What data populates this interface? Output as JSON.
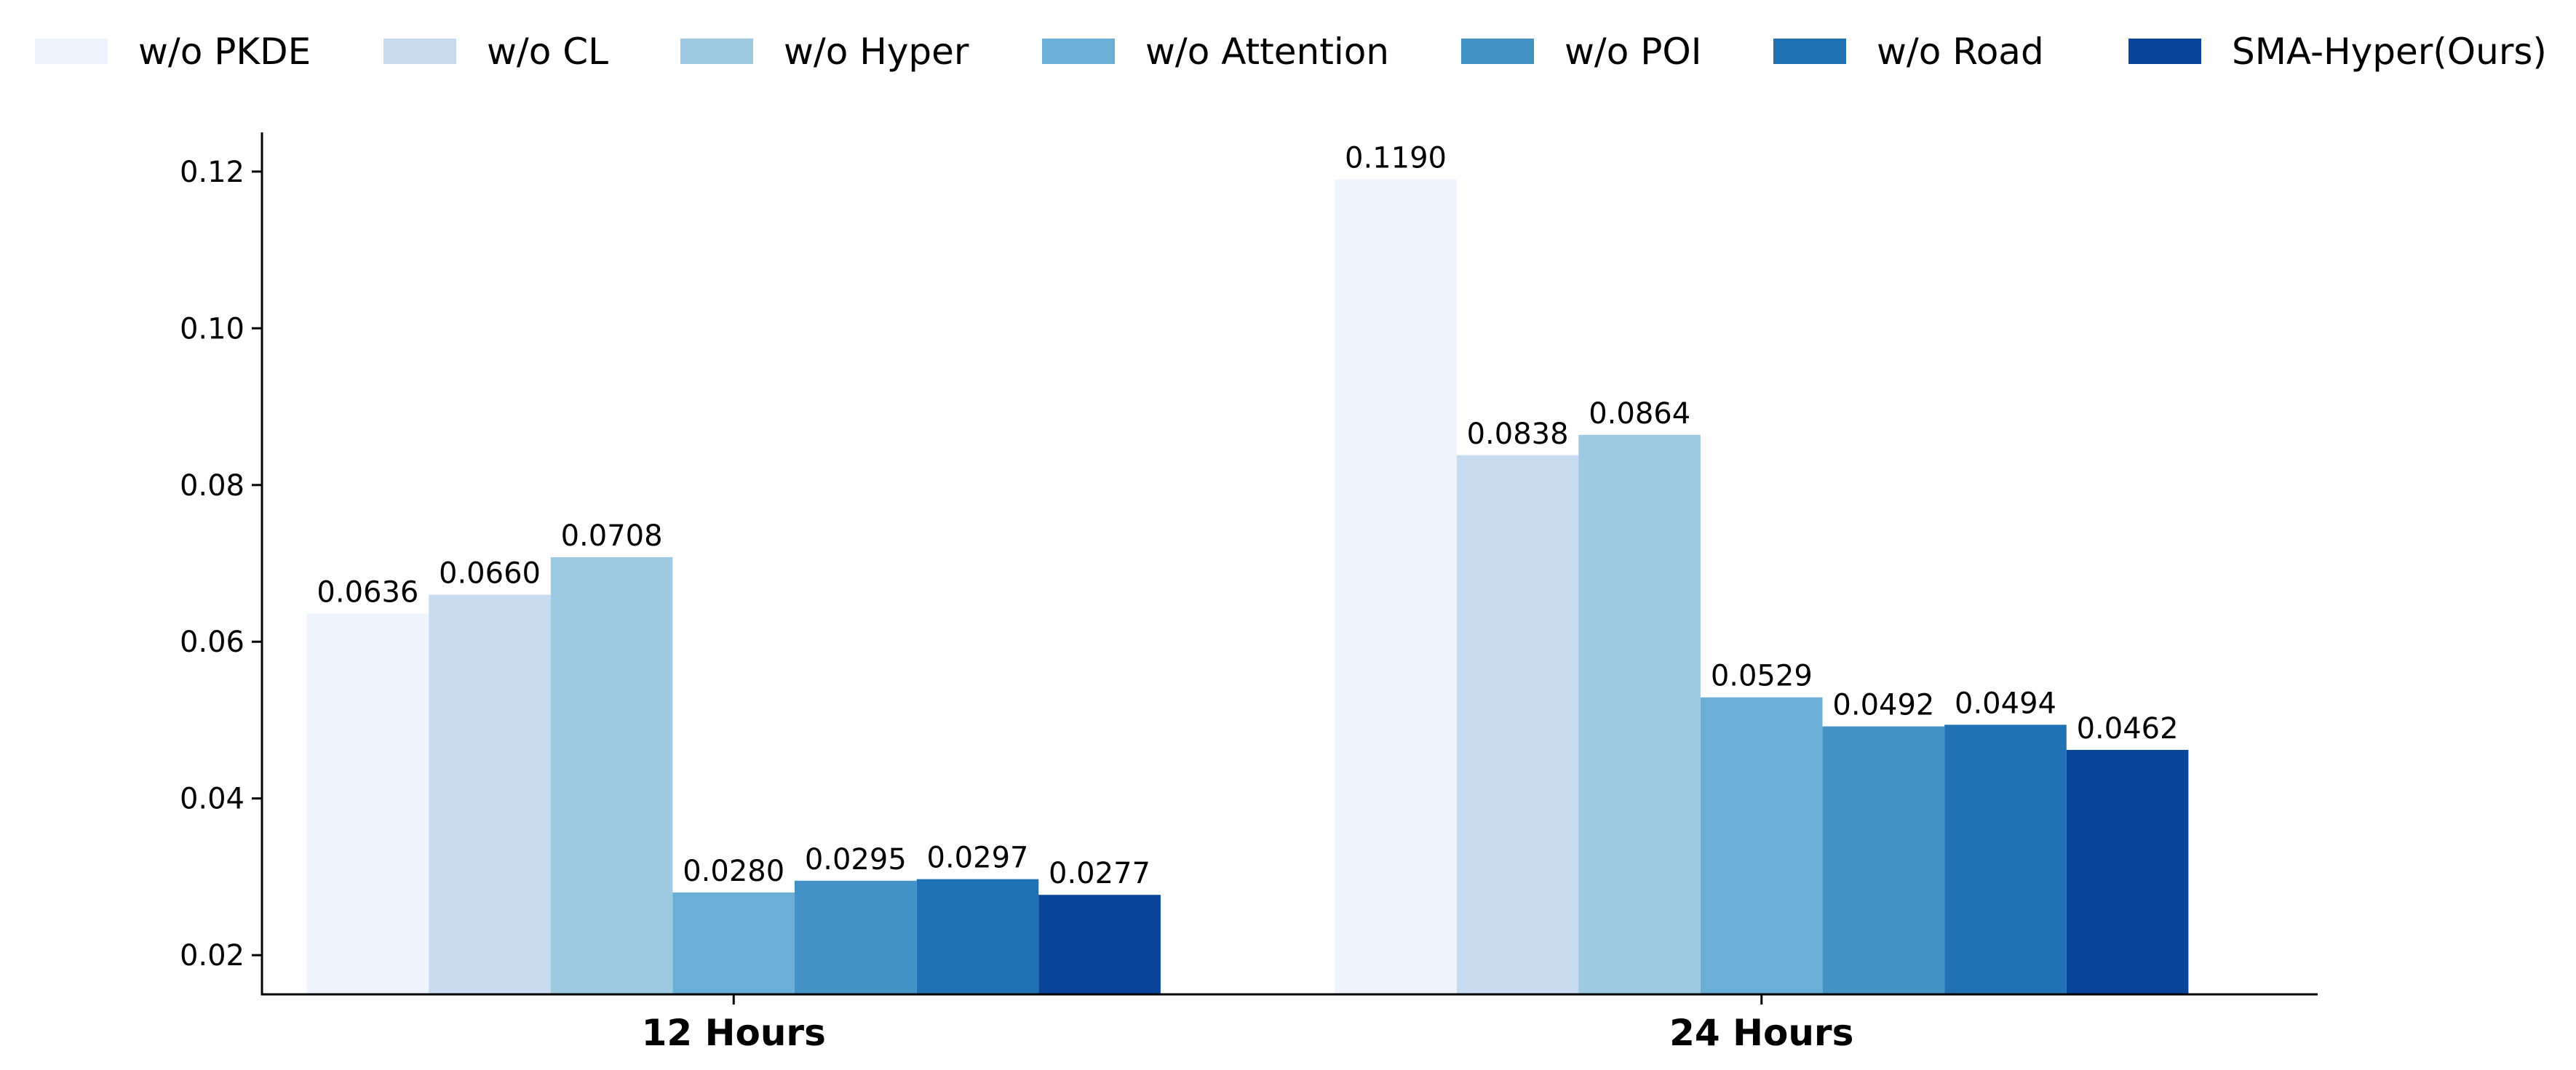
{
  "chart_data": {
    "type": "bar",
    "categories": [
      "12 Hours",
      "24 Hours"
    ],
    "series": [
      {
        "name": "w/o PKDE",
        "color": "#eef3fd",
        "values": [
          0.0636,
          0.119
        ],
        "labels": [
          "0.0636",
          "0.1190"
        ]
      },
      {
        "name": "w/o CL",
        "color": "#c6dbef",
        "values": [
          0.066,
          0.0838
        ],
        "labels": [
          "0.0660",
          "0.0838"
        ]
      },
      {
        "name": "w/o Hyper",
        "color": "#9ecae1",
        "values": [
          0.0708,
          0.0864
        ],
        "labels": [
          "0.0708",
          "0.0864"
        ]
      },
      {
        "name": "w/o Attention",
        "color": "#6baed6",
        "values": [
          0.028,
          0.0529
        ],
        "labels": [
          "0.0280",
          "0.0529"
        ]
      },
      {
        "name": "w/o POI",
        "color": "#4292c6",
        "values": [
          0.0295,
          0.0492
        ],
        "labels": [
          "0.0295",
          "0.0492"
        ]
      },
      {
        "name": "w/o Road",
        "color": "#2171b5",
        "values": [
          0.0297,
          0.0494
        ],
        "labels": [
          "0.0297",
          "0.0494"
        ]
      },
      {
        "name": "SMA-Hyper(Ours)",
        "color": "#08459a",
        "values": [
          0.0277,
          0.0462
        ],
        "labels": [
          "0.0277",
          "0.0462"
        ]
      }
    ],
    "yticks": [
      0.02,
      0.04,
      0.06,
      0.08,
      0.1,
      0.12
    ],
    "ytick_labels": [
      "0.02",
      "0.04",
      "0.06",
      "0.08",
      "0.10",
      "0.12"
    ],
    "ylim": [
      0.015,
      0.125
    ],
    "xlabel": "",
    "ylabel": "",
    "grid": false,
    "legend": "top, single row"
  }
}
